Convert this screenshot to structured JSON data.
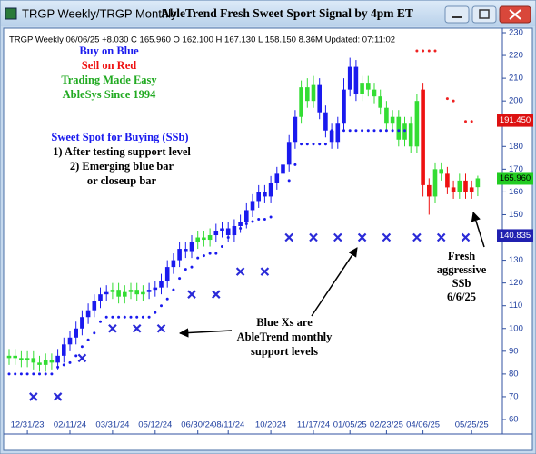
{
  "window": {
    "title": "TRGP Weekly/TRGP Monthly",
    "heading": "AbleTrend Fresh Sweet Sport Signal by 4pm ET"
  },
  "chart_data": {
    "type": "candlestick",
    "header": "TRGP  Weekly 06/06/25 +8.030 C 165.960 O 162.100 H 167.130 L 158.150 8.36M Updated: 07:11:02",
    "categories": [
      null,
      null,
      null,
      "12/31/23",
      null,
      null,
      null,
      null,
      null,
      null,
      "02/11/24",
      null,
      null,
      null,
      null,
      null,
      null,
      "03/31/24",
      null,
      null,
      null,
      null,
      null,
      null,
      "05/12/24",
      null,
      null,
      null,
      null,
      null,
      null,
      "06/30/24",
      null,
      null,
      null,
      null,
      "08/11/24",
      null,
      null,
      null,
      null,
      null,
      null,
      "10/2024",
      null,
      null,
      null,
      null,
      null,
      null,
      "11/17/24",
      null,
      null,
      null,
      null,
      null,
      "01/05/25",
      null,
      null,
      null,
      null,
      null,
      "02/23/25",
      null,
      null,
      null,
      null,
      null,
      "04/06/25",
      null,
      null,
      null,
      null,
      null,
      null,
      null,
      "05/25/25",
      null
    ],
    "open": [
      87,
      88,
      87,
      86,
      87,
      85,
      84,
      86,
      85,
      88,
      93,
      96,
      100,
      105,
      108,
      112,
      115,
      116,
      117,
      114,
      116,
      117,
      115,
      116,
      117,
      118,
      121,
      127,
      130,
      135,
      134,
      138,
      140,
      139,
      141,
      143,
      144,
      141,
      145,
      147,
      152,
      156,
      160,
      158,
      164,
      168,
      172,
      182,
      193,
      206,
      200,
      207,
      195,
      187,
      182,
      190,
      205,
      215,
      203,
      208,
      205,
      202,
      197,
      190,
      193,
      183,
      190,
      180,
      205,
      163,
      158,
      170,
      168,
      162,
      160,
      165,
      160,
      162.1
    ],
    "high": [
      91,
      91,
      90,
      90,
      90,
      88,
      89,
      89,
      91,
      96,
      99,
      103,
      108,
      111,
      115,
      118,
      119,
      120,
      120,
      119,
      120,
      120,
      119,
      120,
      121,
      124,
      130,
      133,
      138,
      138,
      141,
      143,
      143,
      144,
      146,
      147,
      147,
      148,
      150,
      155,
      159,
      163,
      163,
      167,
      171,
      175,
      185,
      196,
      209,
      210,
      211,
      210,
      198,
      190,
      193,
      210,
      219,
      218,
      211,
      211,
      208,
      205,
      200,
      196,
      196,
      193,
      193,
      203,
      208,
      166,
      173,
      173,
      171,
      165,
      168,
      168,
      165,
      167.13
    ],
    "low": [
      84,
      84,
      83,
      83,
      82,
      81,
      81,
      82,
      82,
      85,
      90,
      93,
      97,
      102,
      105,
      109,
      112,
      113,
      111,
      111,
      113,
      112,
      112,
      113,
      114,
      115,
      118,
      124,
      127,
      131,
      131,
      135,
      136,
      136,
      138,
      140,
      138,
      138,
      142,
      144,
      149,
      153,
      155,
      155,
      161,
      165,
      169,
      179,
      190,
      197,
      197,
      192,
      184,
      179,
      179,
      187,
      202,
      200,
      200,
      202,
      199,
      194,
      187,
      187,
      180,
      180,
      177,
      177,
      158,
      150,
      155,
      165,
      159,
      157,
      157,
      157,
      157,
      158.15
    ],
    "close": [
      88,
      87,
      86,
      87,
      85,
      84,
      86,
      85,
      88,
      93,
      96,
      100,
      105,
      108,
      112,
      115,
      116,
      117,
      114,
      116,
      117,
      115,
      116,
      117,
      118,
      121,
      127,
      130,
      135,
      134,
      138,
      140,
      139,
      141,
      143,
      144,
      141,
      145,
      147,
      152,
      156,
      160,
      158,
      164,
      168,
      172,
      182,
      193,
      206,
      200,
      207,
      195,
      187,
      182,
      190,
      205,
      215,
      203,
      208,
      205,
      202,
      197,
      190,
      193,
      183,
      190,
      180,
      200,
      163,
      158,
      170,
      168,
      162,
      160,
      165,
      160,
      162,
      165.96
    ],
    "colors": [
      "#33dd33",
      "#33dd33",
      "#33dd33",
      "#33dd33",
      "#33dd33",
      "#33dd33",
      "#33dd33",
      "#33dd33",
      "#1a1aee",
      "#1a1aee",
      "#1a1aee",
      "#1a1aee",
      "#1a1aee",
      "#1a1aee",
      "#1a1aee",
      "#1a1aee",
      "#1a1aee",
      "#33dd33",
      "#33dd33",
      "#33dd33",
      "#33dd33",
      "#33dd33",
      "#33dd33",
      "#1a1aee",
      "#1a1aee",
      "#1a1aee",
      "#1a1aee",
      "#1a1aee",
      "#1a1aee",
      "#1a1aee",
      "#1a1aee",
      "#33dd33",
      "#33dd33",
      "#33dd33",
      "#1a1aee",
      "#1a1aee",
      "#1a1aee",
      "#1a1aee",
      "#1a1aee",
      "#1a1aee",
      "#1a1aee",
      "#1a1aee",
      "#1a1aee",
      "#1a1aee",
      "#1a1aee",
      "#1a1aee",
      "#1a1aee",
      "#1a1aee",
      "#33dd33",
      "#33dd33",
      "#33dd33",
      "#1a1aee",
      "#1a1aee",
      "#1a1aee",
      "#1a1aee",
      "#1a1aee",
      "#1a1aee",
      "#1a1aee",
      "#33dd33",
      "#33dd33",
      "#33dd33",
      "#33dd33",
      "#33dd33",
      "#33dd33",
      "#33dd33",
      "#33dd33",
      "#33dd33",
      "#33dd33",
      "#ee1111",
      "#ee1111",
      "#33dd33",
      "#33dd33",
      "#ee1111",
      "#ee1111",
      "#33dd33",
      "#ee1111",
      "#ee1111",
      "#33dd33"
    ],
    "stop_dots": {
      "color": "#1a1aee",
      "values": [
        80,
        80,
        80,
        80,
        80,
        80,
        80,
        80,
        83,
        84,
        85,
        88,
        92,
        95,
        98,
        103,
        105,
        105,
        105,
        105,
        105,
        105,
        105,
        105,
        107,
        110,
        113,
        117,
        122,
        126,
        127,
        131,
        132,
        133,
        133,
        136,
        140,
        142,
        144,
        146,
        147,
        148,
        148,
        149,
        null,
        null,
        165,
        172,
        181,
        181,
        181,
        181,
        181,
        187,
        187,
        187,
        187,
        187,
        187,
        187,
        187,
        187,
        187,
        187,
        187,
        187,
        null,
        null,
        null,
        null,
        null,
        null,
        null,
        null,
        null,
        null,
        null,
        null
      ]
    },
    "sell_dots": {
      "color": "#ee2222",
      "values": [
        null,
        null,
        null,
        null,
        null,
        null,
        null,
        null,
        null,
        null,
        null,
        null,
        null,
        null,
        null,
        null,
        null,
        null,
        null,
        null,
        null,
        null,
        null,
        null,
        null,
        null,
        null,
        null,
        null,
        null,
        null,
        null,
        null,
        null,
        null,
        null,
        null,
        null,
        null,
        null,
        null,
        null,
        null,
        null,
        null,
        null,
        null,
        null,
        null,
        null,
        null,
        null,
        null,
        null,
        null,
        null,
        null,
        null,
        null,
        null,
        null,
        null,
        null,
        null,
        null,
        null,
        null,
        222,
        222,
        222,
        222,
        null,
        201,
        200,
        null,
        191,
        191,
        null
      ]
    },
    "support": {
      "color": "#2a2ad8",
      "values": [
        null,
        null,
        null,
        null,
        70,
        null,
        null,
        null,
        70,
        null,
        null,
        null,
        87,
        null,
        null,
        null,
        null,
        100,
        null,
        null,
        null,
        100,
        null,
        null,
        null,
        100,
        null,
        null,
        null,
        null,
        115,
        null,
        null,
        null,
        115,
        null,
        null,
        null,
        125,
        null,
        null,
        null,
        125,
        null,
        null,
        null,
        140,
        null,
        null,
        null,
        140,
        null,
        null,
        null,
        140,
        null,
        null,
        null,
        140,
        null,
        null,
        null,
        140,
        null,
        null,
        null,
        null,
        140,
        null,
        null,
        null,
        140,
        null,
        null,
        null,
        140,
        null,
        null
      ]
    },
    "ylim": [
      60,
      230
    ],
    "yticks": [
      60,
      70,
      80,
      90,
      100,
      110,
      120,
      130,
      140,
      150,
      160,
      170,
      180,
      190,
      200,
      210,
      220,
      230
    ],
    "price_labels": [
      {
        "value": 191.45,
        "label": "191.450",
        "color": "#dd1111"
      },
      {
        "value": 165.96,
        "label": "165.960",
        "color": "#22cc22"
      },
      {
        "value": 140.835,
        "label": "140.835",
        "color": "#2020b0"
      }
    ],
    "legend_text": [
      {
        "text": "Buy on Blue",
        "color": "#1a1aee"
      },
      {
        "text": "Sell on Red",
        "color": "#ee1111"
      },
      {
        "text": "Trading Made Easy",
        "color": "#22aa22"
      },
      {
        "text": "AbleSys Since 1994",
        "color": "#22aa22"
      }
    ],
    "ssb_text": {
      "title": "Sweet Spot for Buying (SSb)",
      "lines": [
        "1) After testing support level",
        "2) Emerging blue bar",
        "or closeup bar"
      ]
    },
    "notes": [
      {
        "lines": [
          "Blue Xs are",
          "AbleTrend monthly",
          "support levels"
        ]
      },
      {
        "lines": [
          "Fresh",
          "aggressive",
          "SSb",
          "6/6/25"
        ]
      }
    ]
  }
}
